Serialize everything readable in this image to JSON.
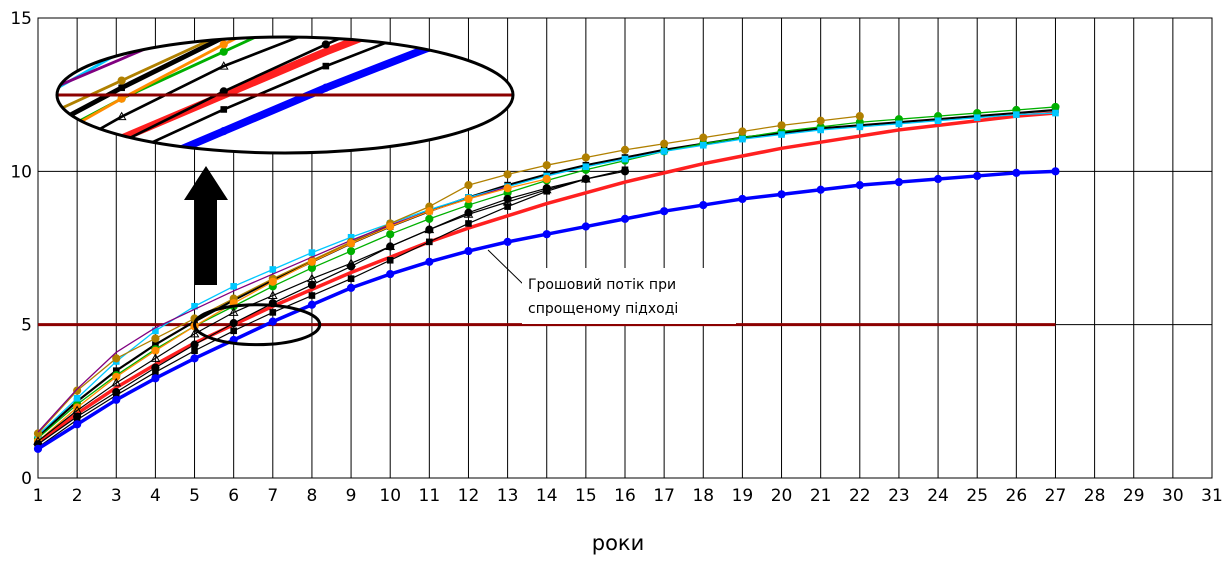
{
  "chart_data": {
    "type": "line",
    "xlabel": "роки",
    "ylabel": "",
    "xlim": [
      1,
      31
    ],
    "ylim": [
      0,
      15
    ],
    "x_ticks": [
      "1",
      "2",
      "3",
      "4",
      "5",
      "6",
      "7",
      "8",
      "9",
      "10",
      "11",
      "12",
      "13",
      "14",
      "15",
      "16",
      "17",
      "18",
      "19",
      "20",
      "21",
      "22",
      "23",
      "24",
      "25",
      "26",
      "27",
      "28",
      "29",
      "30",
      "31"
    ],
    "y_ticks": [
      "0",
      "5",
      "10",
      "15"
    ],
    "grid": true,
    "threshold": {
      "value": 5,
      "x_range": [
        1,
        27
      ],
      "color": "#8b0000"
    },
    "annotation": {
      "lines": [
        "Грошовий потік при",
        "спрощеному підході"
      ],
      "points_to": {
        "x": 12.5,
        "y": 7.5
      }
    },
    "zoom_ellipse": {
      "x_center": 6.6,
      "y_center": 5.0,
      "x_radius": 1.6,
      "y_radius": 0.65
    },
    "series": [
      {
        "color": "#ff2020",
        "width": 3.5,
        "marker": "",
        "values": [
          1.15,
          2.1,
          2.95,
          3.7,
          4.4,
          5.0,
          5.6,
          6.15,
          6.7,
          7.2,
          7.7,
          8.15,
          8.55,
          8.95,
          9.3,
          9.65,
          9.95,
          10.25,
          10.5,
          10.75,
          10.95,
          11.15,
          11.35,
          11.5,
          11.65,
          11.8,
          11.9
        ]
      },
      {
        "color": "#000000",
        "width": 2.2,
        "marker": "square",
        "values": [
          1.35,
          2.5,
          3.5,
          4.35,
          5.1,
          5.8,
          6.45,
          7.05,
          7.65,
          8.2,
          8.7,
          9.15,
          9.55,
          9.9,
          10.2,
          10.45,
          10.7,
          10.9,
          11.1,
          11.25,
          11.4,
          11.5,
          11.6,
          11.7,
          11.8,
          11.9,
          12.0
        ]
      },
      {
        "color": "#00b000",
        "width": 1.3,
        "marker": "circle",
        "values": [
          1.3,
          2.4,
          3.35,
          4.2,
          4.95,
          5.6,
          6.25,
          6.85,
          7.4,
          7.95,
          8.45,
          8.9,
          9.3,
          9.7,
          10.05,
          10.35,
          10.65,
          10.9,
          11.1,
          11.3,
          11.45,
          11.6,
          11.7,
          11.8,
          11.9,
          12.0,
          12.1
        ]
      },
      {
        "color": "#00c8ff",
        "width": 1.3,
        "marker": "square",
        "values": [
          1.4,
          2.6,
          3.8,
          4.8,
          5.6,
          6.25,
          6.8,
          7.35,
          7.85,
          8.3,
          8.75,
          9.15,
          9.5,
          9.85,
          10.15,
          10.4,
          10.65,
          10.85,
          11.05,
          11.2,
          11.35,
          11.45,
          11.55,
          11.65,
          11.75,
          11.85,
          11.9
        ]
      },
      {
        "color": "#b08000",
        "width": 1.3,
        "marker": "circle",
        "values": [
          1.45,
          2.85,
          3.9,
          4.55,
          5.2,
          5.85,
          6.5,
          7.1,
          7.7,
          8.3,
          8.85,
          9.55,
          9.9,
          10.2,
          10.45,
          10.7,
          10.9,
          11.1,
          11.3,
          11.5,
          11.65,
          11.8
        ]
      },
      {
        "color": "#800080",
        "width": 1.3,
        "marker": "",
        "values": [
          1.5,
          2.9,
          4.1,
          4.9,
          5.5,
          6.1,
          6.65,
          7.2,
          7.75,
          8.25,
          8.7,
          9.1,
          9.5
        ]
      },
      {
        "color": "#ff8c00",
        "width": 1.3,
        "marker": "circle",
        "values": [
          1.2,
          2.3,
          3.3,
          4.15,
          4.95,
          5.7,
          6.4,
          7.05,
          7.65,
          8.2,
          8.7,
          9.1,
          9.45,
          9.75
        ]
      },
      {
        "color": "#000000",
        "width": 1.2,
        "marker": "triangle",
        "values": [
          1.2,
          2.2,
          3.1,
          3.9,
          4.7,
          5.4,
          5.95,
          6.5,
          7.0,
          7.55,
          8.1,
          8.6,
          9.0,
          9.4,
          9.75
        ]
      },
      {
        "color": "#000000",
        "width": 1.2,
        "marker": "circle",
        "values": [
          1.1,
          2.0,
          2.8,
          3.6,
          4.35,
          5.05,
          5.7,
          6.3,
          6.9,
          7.55,
          8.1,
          8.65,
          9.1,
          9.45,
          9.75,
          10.0
        ]
      },
      {
        "color": "#000000",
        "width": 1.2,
        "marker": "square",
        "values": [
          1.0,
          1.9,
          2.7,
          3.45,
          4.15,
          4.8,
          5.4,
          5.95,
          6.5,
          7.1,
          7.7,
          8.3,
          8.85,
          9.35,
          9.75,
          10.05
        ]
      },
      {
        "color": "#0000ff",
        "width": 3.5,
        "marker": "circle",
        "values": [
          0.95,
          1.75,
          2.55,
          3.25,
          3.9,
          4.5,
          5.1,
          5.65,
          6.2,
          6.65,
          7.05,
          7.4,
          7.7,
          7.95,
          8.2,
          8.45,
          8.7,
          8.9,
          9.1,
          9.25,
          9.4,
          9.55,
          9.65,
          9.75,
          9.85,
          9.95,
          10.0
        ]
      }
    ]
  }
}
